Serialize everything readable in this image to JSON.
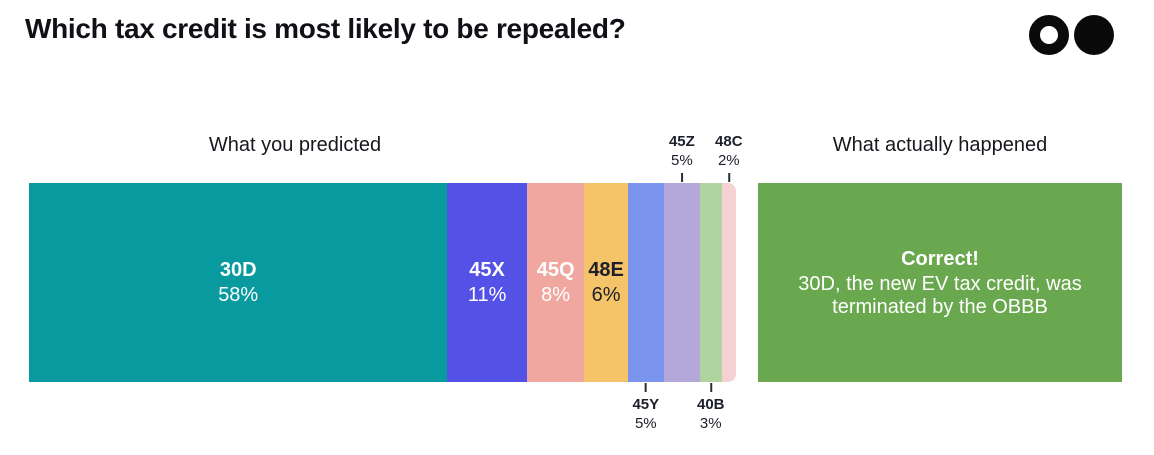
{
  "page": {
    "title": "Which tax credit is most likely to be repealed?"
  },
  "logo": {
    "ring_color": "#0a0a0a",
    "dot_color": "#0a0a0a"
  },
  "columns": {
    "predicted_header": "What you predicted",
    "actual_header": "What actually happened"
  },
  "result_box": {
    "title": "Correct!",
    "body": "30D, the new EV tax credit, was terminated by the OBBB",
    "background": "#6aa84f",
    "text_color": "#ffffff"
  },
  "chart_data": {
    "type": "bar",
    "variant": "horizontal-stacked-percentage",
    "title": "What you predicted",
    "unit": "%",
    "categories": [
      "30D",
      "45X",
      "45Q",
      "48E",
      "45Y",
      "45Z",
      "40B",
      "48C"
    ],
    "values": [
      58,
      11,
      8,
      6,
      5,
      5,
      3,
      2
    ],
    "segments": [
      {
        "label": "30D",
        "value": 58,
        "display": "58%",
        "color": "#089a9e",
        "text_color": "#ffffff",
        "label_position": "inside"
      },
      {
        "label": "45X",
        "value": 11,
        "display": "11%",
        "color": "#5351e6",
        "text_color": "#ffffff",
        "label_position": "inside"
      },
      {
        "label": "45Q",
        "value": 8,
        "display": "8%",
        "color": "#f0a79f",
        "text_color": "#ffffff",
        "label_position": "inside"
      },
      {
        "label": "48E",
        "value": 6,
        "display": "6%",
        "color": "#f5c368",
        "text_color": "#1d1f2a",
        "label_position": "inside"
      },
      {
        "label": "45Y",
        "value": 5,
        "display": "5%",
        "color": "#7b95ee",
        "text_color": "#1d1f2a",
        "label_position": "below"
      },
      {
        "label": "45Z",
        "value": 5,
        "display": "5%",
        "color": "#b4a7d9",
        "text_color": "#1d1f2a",
        "label_position": "above"
      },
      {
        "label": "40B",
        "value": 3,
        "display": "3%",
        "color": "#afd4a0",
        "text_color": "#1d1f2a",
        "label_position": "below"
      },
      {
        "label": "48C",
        "value": 2,
        "display": "2%",
        "color": "#f5d1d4",
        "text_color": "#1d1f2a",
        "label_position": "above"
      }
    ]
  }
}
